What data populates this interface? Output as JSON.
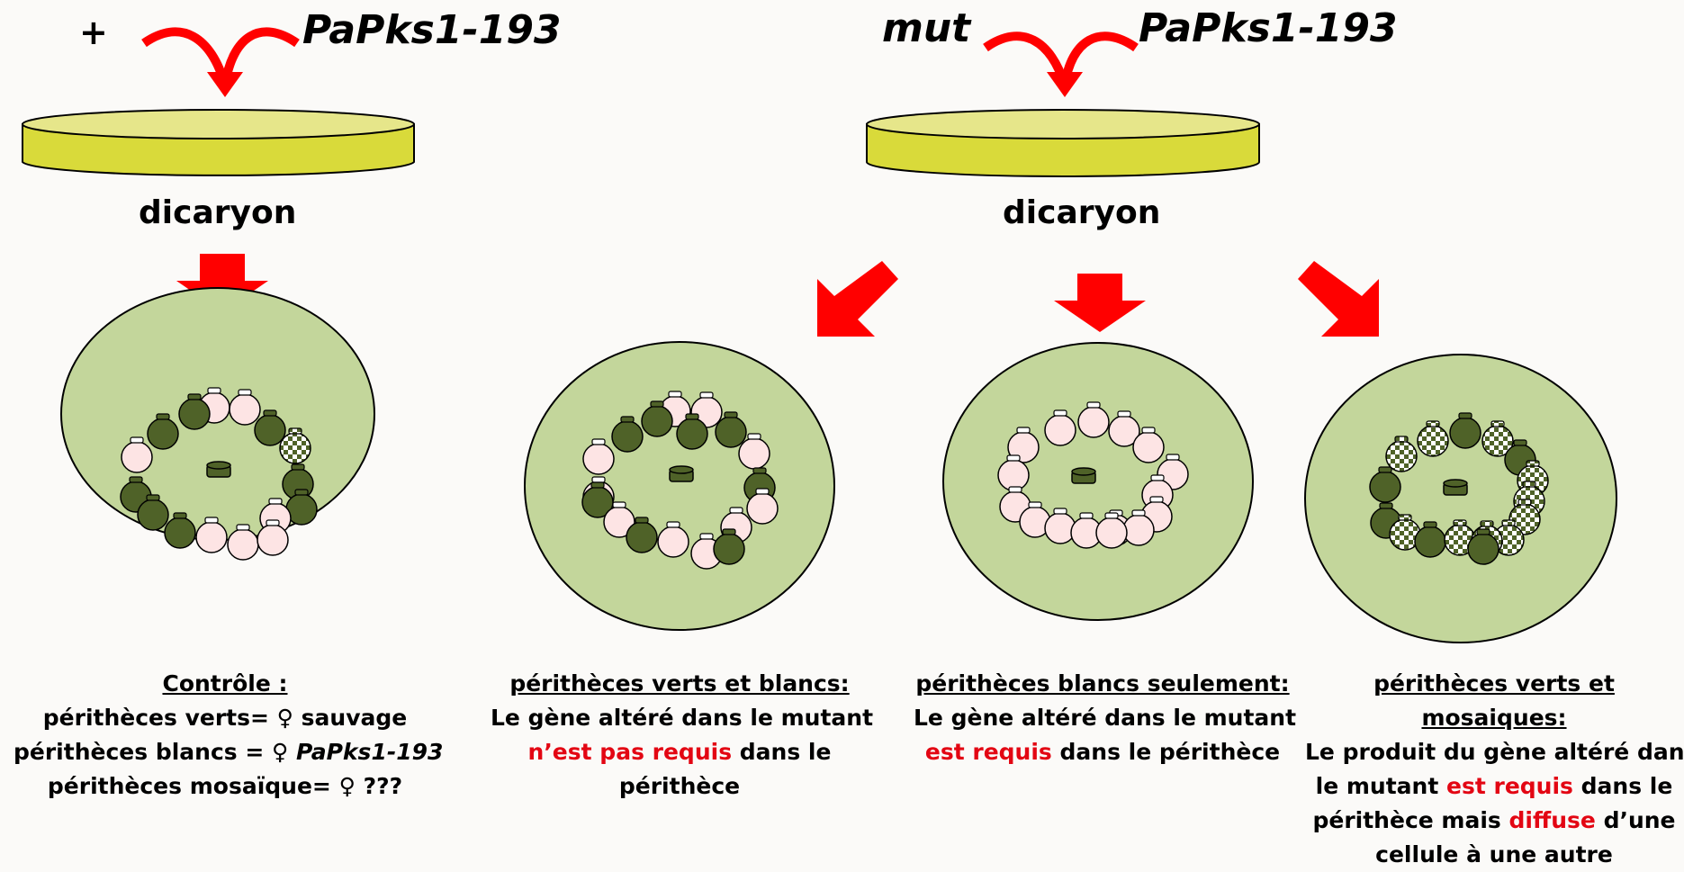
{
  "cross_left": {
    "allele": "+",
    "strain": "PaPks1-193",
    "dish_label": "dicaryon"
  },
  "cross_right": {
    "allele": "mut",
    "strain": "PaPks1-193",
    "dish_label": "dicaryon"
  },
  "captions": {
    "control": {
      "heading": "Contrôle :",
      "l1": "périthèces verts= ♀ sauvage",
      "l2_a": "périthèces blancs = ♀ ",
      "l2_b": "PaPks1-193",
      "l3": "périthèces mosaïque= ♀ ???"
    },
    "green_white": {
      "heading": "périthèces verts et blancs:",
      "l1": "Le gène altéré dans le mutant",
      "l2_red": "n’est pas requis",
      "l2_rest": " dans le",
      "l3": "périthèce"
    },
    "white_only": {
      "heading": "périthèces blancs seulement:",
      "l1": "Le gène altéré dans le mutant",
      "l2_red": "est requis",
      "l2_rest": " dans le périthèce"
    },
    "green_mosaic": {
      "heading": "périthèces verts et mosaiques:",
      "l1": "Le produit du gène altéré dans",
      "l2_a": "le mutant ",
      "l2_red": "est requis",
      "l2_b": " dans le",
      "l3_a": "périthèce mais ",
      "l3_red": "diffuse",
      "l3_b": " d’une",
      "l4": "cellule à une autre"
    }
  },
  "colors": {
    "arrow_red": "#ff0000",
    "dish_yellow": "#d9da3a",
    "plate_green": "#c3d69b",
    "perithecium_green": "#4f6228",
    "perithecium_white": "#fde4e4",
    "caption_red": "#e30613"
  }
}
